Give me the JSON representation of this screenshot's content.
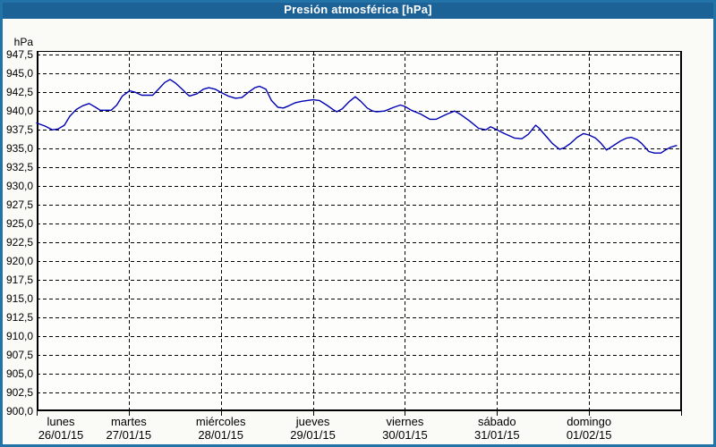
{
  "window_title": "Presión atmosférica [hPa]",
  "colors": {
    "titlebar_bg": "#1d6296",
    "frame": "#2273a7",
    "title_text": "#ffffff",
    "series_line": "#0000b3",
    "grid": "#000000",
    "axis": "#000000",
    "plot_bg": "#fdfefc",
    "page_bg": "#fafbf7",
    "text": "#000000"
  },
  "chart_data": {
    "type": "line",
    "title": "Presión atmosférica [hPa]",
    "ylabel": "hPa",
    "ylim": [
      900,
      948
    ],
    "y_tick_step": 2.5,
    "y_tick_labels": [
      "947,5",
      "945,0",
      "942,5",
      "940,0",
      "937,5",
      "935,0",
      "932,5",
      "930,0",
      "927,5",
      "925,0",
      "922,5",
      "920,0",
      "917,5",
      "915,0",
      "912,5",
      "910,0",
      "907,5",
      "905,0",
      "902,5",
      "900,0"
    ],
    "x_range_days": [
      0,
      7
    ],
    "x_tick_labels": [
      {
        "day": "lunes",
        "date": "26/01/15"
      },
      {
        "day": "martes",
        "date": "27/01/15"
      },
      {
        "day": "miércoles",
        "date": "28/01/15"
      },
      {
        "day": "jueves",
        "date": "29/01/15"
      },
      {
        "day": "viernes",
        "date": "30/01/15"
      },
      {
        "day": "sábado",
        "date": "31/01/15"
      },
      {
        "day": "domingo",
        "date": "01/02/15"
      }
    ],
    "grid": "dashed-black",
    "legend": "none",
    "series": [
      {
        "name": "Presión atmosférica",
        "unit": "hPa",
        "color": "#0000b3",
        "points": [
          [
            0.0,
            938.4
          ],
          [
            0.09,
            938.0
          ],
          [
            0.17,
            937.5
          ],
          [
            0.23,
            937.6
          ],
          [
            0.3,
            938.1
          ],
          [
            0.36,
            939.3
          ],
          [
            0.43,
            940.2
          ],
          [
            0.5,
            940.7
          ],
          [
            0.57,
            941.0
          ],
          [
            0.64,
            940.5
          ],
          [
            0.69,
            940.1
          ],
          [
            0.75,
            940.1
          ],
          [
            0.81,
            940.1
          ],
          [
            0.87,
            940.8
          ],
          [
            0.93,
            942.0
          ],
          [
            1.01,
            942.7
          ],
          [
            1.07,
            942.5
          ],
          [
            1.14,
            942.1
          ],
          [
            1.21,
            942.1
          ],
          [
            1.26,
            942.1
          ],
          [
            1.33,
            943.0
          ],
          [
            1.39,
            943.8
          ],
          [
            1.45,
            944.2
          ],
          [
            1.51,
            943.7
          ],
          [
            1.58,
            942.9
          ],
          [
            1.63,
            942.3
          ],
          [
            1.66,
            942.0
          ],
          [
            1.74,
            942.3
          ],
          [
            1.81,
            942.9
          ],
          [
            1.87,
            943.1
          ],
          [
            1.94,
            942.9
          ],
          [
            2.0,
            942.5
          ],
          [
            2.08,
            942.0
          ],
          [
            2.16,
            941.7
          ],
          [
            2.23,
            941.8
          ],
          [
            2.3,
            942.5
          ],
          [
            2.37,
            943.1
          ],
          [
            2.42,
            943.3
          ],
          [
            2.49,
            942.9
          ],
          [
            2.55,
            941.4
          ],
          [
            2.62,
            940.5
          ],
          [
            2.68,
            940.4
          ],
          [
            2.74,
            940.7
          ],
          [
            2.81,
            941.1
          ],
          [
            2.88,
            941.3
          ],
          [
            2.94,
            941.4
          ],
          [
            3.0,
            941.5
          ],
          [
            3.07,
            941.4
          ],
          [
            3.15,
            940.8
          ],
          [
            3.23,
            940.1
          ],
          [
            3.26,
            939.9
          ],
          [
            3.32,
            940.3
          ],
          [
            3.39,
            941.2
          ],
          [
            3.46,
            941.9
          ],
          [
            3.52,
            941.3
          ],
          [
            3.59,
            940.4
          ],
          [
            3.65,
            940.0
          ],
          [
            3.69,
            939.9
          ],
          [
            3.78,
            940.0
          ],
          [
            3.88,
            940.5
          ],
          [
            3.95,
            940.8
          ],
          [
            4.0,
            940.6
          ],
          [
            4.07,
            940.1
          ],
          [
            4.17,
            939.6
          ],
          [
            4.27,
            938.9
          ],
          [
            4.34,
            938.9
          ],
          [
            4.39,
            939.2
          ],
          [
            4.46,
            939.6
          ],
          [
            4.54,
            940.0
          ],
          [
            4.61,
            939.5
          ],
          [
            4.71,
            938.6
          ],
          [
            4.8,
            937.7
          ],
          [
            4.88,
            937.5
          ],
          [
            4.93,
            937.9
          ],
          [
            5.0,
            937.5
          ],
          [
            5.08,
            937.0
          ],
          [
            5.19,
            936.4
          ],
          [
            5.27,
            936.3
          ],
          [
            5.34,
            936.9
          ],
          [
            5.38,
            937.5
          ],
          [
            5.42,
            938.1
          ],
          [
            5.46,
            937.7
          ],
          [
            5.5,
            937.1
          ],
          [
            5.55,
            936.4
          ],
          [
            5.6,
            935.7
          ],
          [
            5.68,
            934.9
          ],
          [
            5.73,
            935.1
          ],
          [
            5.8,
            935.7
          ],
          [
            5.87,
            936.5
          ],
          [
            5.94,
            937.0
          ],
          [
            6.0,
            936.8
          ],
          [
            6.07,
            936.4
          ],
          [
            6.13,
            935.7
          ],
          [
            6.19,
            934.8
          ],
          [
            6.28,
            935.5
          ],
          [
            6.34,
            936.0
          ],
          [
            6.41,
            936.4
          ],
          [
            6.46,
            936.5
          ],
          [
            6.52,
            936.2
          ],
          [
            6.57,
            935.7
          ],
          [
            6.65,
            934.6
          ],
          [
            6.71,
            934.4
          ],
          [
            6.78,
            934.4
          ],
          [
            6.83,
            934.8
          ],
          [
            6.89,
            935.2
          ],
          [
            6.95,
            935.4
          ]
        ]
      }
    ]
  }
}
